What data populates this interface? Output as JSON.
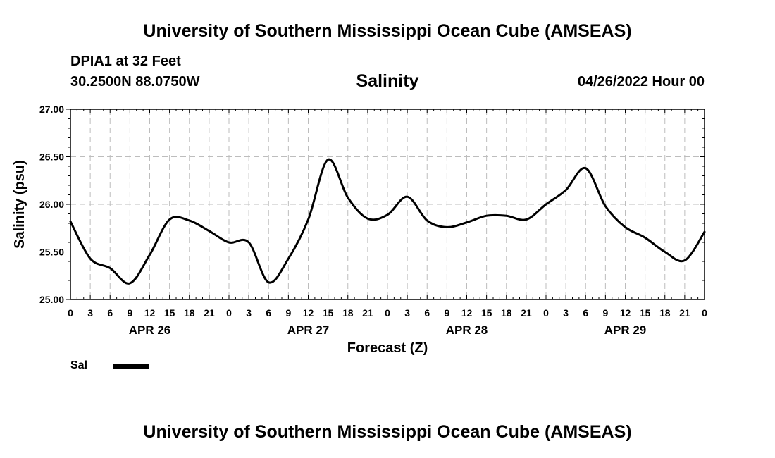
{
  "header": {
    "title": "University of Southern Mississippi Ocean Cube (AMSEAS)",
    "station": "DPIA1 at 32 Feet",
    "coords": "30.2500N  88.0750W",
    "date": "04/26/2022 Hour 00"
  },
  "footer": {
    "title": "University of Southern Mississippi Ocean Cube (AMSEAS)"
  },
  "legend": {
    "label": "Sal",
    "color": "#000000"
  },
  "chart_data": {
    "type": "line",
    "title": "Salinity",
    "xlabel": "Forecast (Z)",
    "ylabel": "Salinity (psu)",
    "xlim": [
      0,
      96
    ],
    "ylim": [
      25.0,
      27.0
    ],
    "yticks": [
      "25.00",
      "25.50",
      "26.00",
      "26.50",
      "27.00"
    ],
    "xtick_labels": [
      "0",
      "3",
      "6",
      "9",
      "12",
      "15",
      "18",
      "21",
      "0",
      "3",
      "6",
      "9",
      "12",
      "15",
      "18",
      "21",
      "0",
      "3",
      "6",
      "9",
      "12",
      "15",
      "18",
      "21",
      "0",
      "3",
      "6",
      "9",
      "12",
      "15",
      "18",
      "21",
      "0"
    ],
    "day_labels": [
      {
        "label": "APR 26",
        "hour": 12
      },
      {
        "label": "APR 27",
        "hour": 36
      },
      {
        "label": "APR 28",
        "hour": 60
      },
      {
        "label": "APR 29",
        "hour": 84
      }
    ],
    "grid": true,
    "series": [
      {
        "name": "Sal",
        "x": [
          0,
          3,
          6,
          9,
          12,
          15,
          18,
          21,
          24,
          27,
          30,
          33,
          36,
          39,
          42,
          45,
          48,
          51,
          54,
          57,
          60,
          63,
          66,
          69,
          72,
          75,
          78,
          81,
          84,
          87,
          90,
          93,
          96
        ],
        "values": [
          25.82,
          25.43,
          25.33,
          25.17,
          25.47,
          25.84,
          25.83,
          25.72,
          25.6,
          25.6,
          25.18,
          25.43,
          25.84,
          26.47,
          26.07,
          25.85,
          25.89,
          26.08,
          25.83,
          25.76,
          25.81,
          25.88,
          25.88,
          25.84,
          26.0,
          26.15,
          26.38,
          25.98,
          25.76,
          25.65,
          25.5,
          25.41,
          25.71
        ]
      }
    ]
  }
}
